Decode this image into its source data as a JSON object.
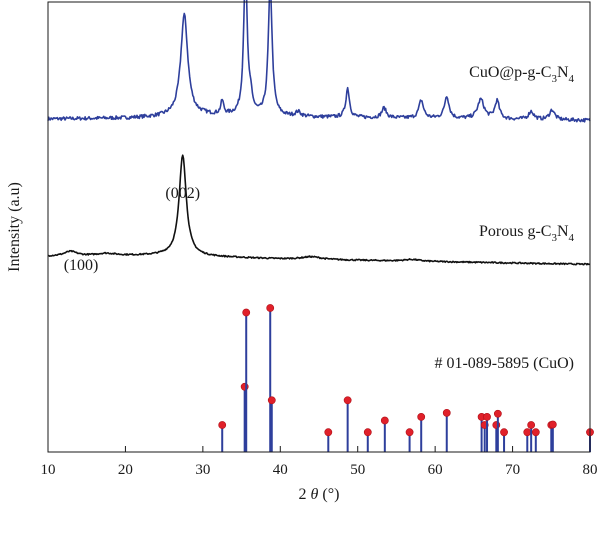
{
  "chart_data": {
    "type": "line",
    "xlabel_prefix": "2",
    "xlabel_symbol": "θ",
    "xlabel_unit": "(°)",
    "ylabel": "Intensity (a.u)",
    "xlim": [
      10,
      80
    ],
    "xticks": [
      10,
      20,
      30,
      40,
      50,
      60,
      70,
      80
    ],
    "y_ticks_shown": false,
    "grid": false,
    "series": [
      {
        "name": "CuO@p-g-C3N4",
        "label_parts": [
          "CuO@p-g-C",
          "3",
          "N",
          "4"
        ],
        "color": "#2e3f9c",
        "offset": 0.735,
        "baseline": 0.005,
        "noise": 0.004,
        "background": [
          [
            10,
            0.0
          ],
          [
            20,
            0.002
          ],
          [
            30,
            0.008
          ],
          [
            45,
            0.004
          ],
          [
            80,
            -0.003
          ]
        ],
        "peaks": [
          {
            "x": 27.6,
            "h": 0.225,
            "w": 0.55
          },
          {
            "x": 32.5,
            "h": 0.03,
            "w": 0.22
          },
          {
            "x": 35.5,
            "h": 0.325,
            "w": 0.28
          },
          {
            "x": 36.2,
            "h": 0.03,
            "w": 0.25
          },
          {
            "x": 38.7,
            "h": 0.29,
            "w": 0.3
          },
          {
            "x": 42.3,
            "h": 0.01,
            "w": 0.4
          },
          {
            "x": 48.7,
            "h": 0.065,
            "w": 0.28
          },
          {
            "x": 53.4,
            "h": 0.022,
            "w": 0.35
          },
          {
            "x": 58.2,
            "h": 0.04,
            "w": 0.35
          },
          {
            "x": 61.5,
            "h": 0.05,
            "w": 0.35
          },
          {
            "x": 65.9,
            "h": 0.043,
            "w": 0.5
          },
          {
            "x": 68.0,
            "h": 0.04,
            "w": 0.35
          },
          {
            "x": 72.4,
            "h": 0.018,
            "w": 0.4
          },
          {
            "x": 75.1,
            "h": 0.022,
            "w": 0.4
          }
        ]
      },
      {
        "name": "Porous g-C3N4",
        "label_parts": [
          "Porous g-C",
          "3",
          "N",
          "4"
        ],
        "color": "#111111",
        "offset": 0.425,
        "baseline": 0.0,
        "noise": 0.0015,
        "background": [
          [
            10,
            0.01
          ],
          [
            25,
            0.012
          ],
          [
            40,
            0.004
          ],
          [
            80,
            -0.008
          ]
        ],
        "peaks": [
          {
            "x": 12.9,
            "h": 0.01,
            "w": 1.0
          },
          {
            "x": 17.5,
            "h": 0.005,
            "w": 1.5
          },
          {
            "x": 27.4,
            "h": 0.225,
            "w": 0.55
          },
          {
            "x": 44.0,
            "h": 0.006,
            "w": 1.5
          },
          {
            "x": 57.0,
            "h": 0.004,
            "w": 1.2
          }
        ]
      }
    ],
    "reference": {
      "name": "# 01-089-5895 (CuO)",
      "color": "#2e3f9c",
      "marker_color": "#e0202a",
      "baseline": 0.0,
      "lines": [
        {
          "x": 32.5,
          "h": 0.06
        },
        {
          "x": 35.4,
          "h": 0.145
        },
        {
          "x": 35.6,
          "h": 0.31
        },
        {
          "x": 38.7,
          "h": 0.32
        },
        {
          "x": 38.9,
          "h": 0.115
        },
        {
          "x": 46.2,
          "h": 0.044
        },
        {
          "x": 48.7,
          "h": 0.115
        },
        {
          "x": 51.3,
          "h": 0.044
        },
        {
          "x": 53.5,
          "h": 0.07
        },
        {
          "x": 56.7,
          "h": 0.044
        },
        {
          "x": 58.2,
          "h": 0.078
        },
        {
          "x": 61.5,
          "h": 0.087
        },
        {
          "x": 66.0,
          "h": 0.078
        },
        {
          "x": 66.4,
          "h": 0.06
        },
        {
          "x": 66.7,
          "h": 0.078
        },
        {
          "x": 67.9,
          "h": 0.06
        },
        {
          "x": 68.1,
          "h": 0.085
        },
        {
          "x": 68.9,
          "h": 0.044
        },
        {
          "x": 71.9,
          "h": 0.044
        },
        {
          "x": 72.4,
          "h": 0.06
        },
        {
          "x": 73.0,
          "h": 0.044
        },
        {
          "x": 75.0,
          "h": 0.06
        },
        {
          "x": 75.2,
          "h": 0.061
        },
        {
          "x": 80.0,
          "h": 0.044
        }
      ]
    },
    "annotations": [
      {
        "text": "(100)",
        "x": 12.2
      },
      {
        "text": "(002)",
        "x": 27.4
      }
    ]
  }
}
